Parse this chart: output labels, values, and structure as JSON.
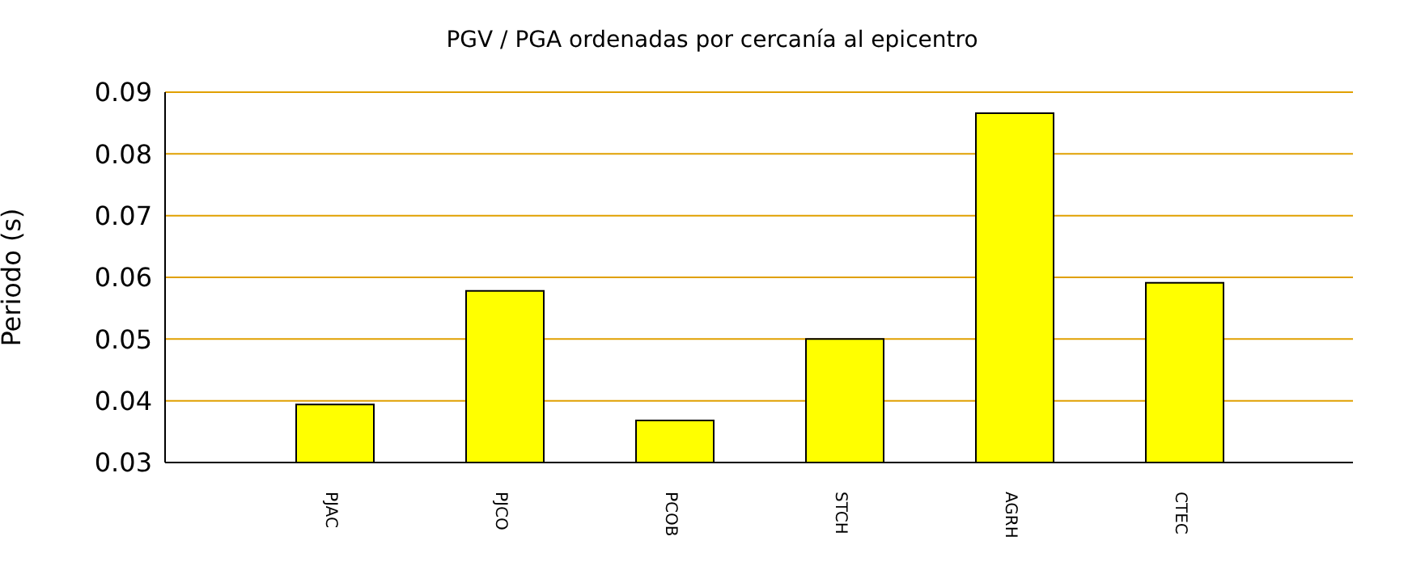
{
  "chart_data": {
    "type": "bar",
    "title": "PGV / PGA ordenadas por cercanía al epicentro",
    "ylabel": "Periodo (s)",
    "categories": [
      "PJAC",
      "PJCO",
      "PCOB",
      "STCH",
      "AGRH",
      "CTEC"
    ],
    "values": [
      0.0394,
      0.0578,
      0.0368,
      0.05,
      0.0866,
      0.0591
    ],
    "color": "#ffff00",
    "ylim": [
      0.03,
      0.09
    ],
    "yticks": [
      0.03,
      0.04,
      0.05,
      0.06,
      0.07,
      0.08,
      0.09
    ],
    "grid": "y",
    "legend": false
  }
}
